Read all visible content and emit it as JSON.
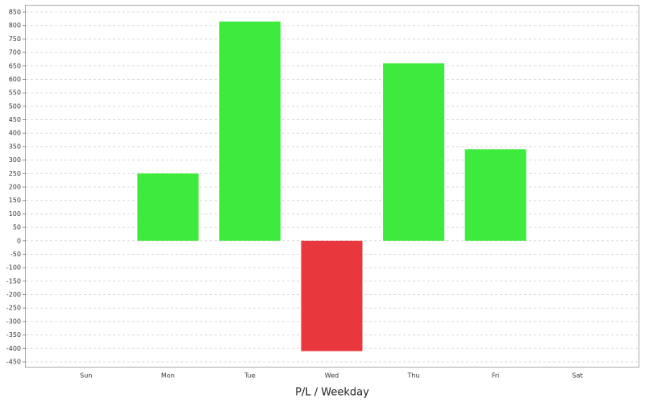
{
  "chart_data": {
    "type": "bar",
    "title": "P/L / Weekday",
    "categories": [
      "Sun",
      "Mon",
      "Tue",
      "Wed",
      "Thu",
      "Fri",
      "Sat"
    ],
    "values": [
      0,
      250,
      815,
      -410,
      660,
      340,
      0
    ],
    "positive_color": "#3deb3d",
    "negative_color": "#e8383d",
    "ylim": [
      -468,
      877
    ],
    "yticks": [
      -450,
      -400,
      -350,
      -300,
      -250,
      -200,
      -150,
      -100,
      -50,
      0,
      50,
      100,
      150,
      200,
      250,
      300,
      350,
      400,
      450,
      500,
      550,
      600,
      650,
      700,
      750,
      800,
      850
    ],
    "grid": true
  }
}
